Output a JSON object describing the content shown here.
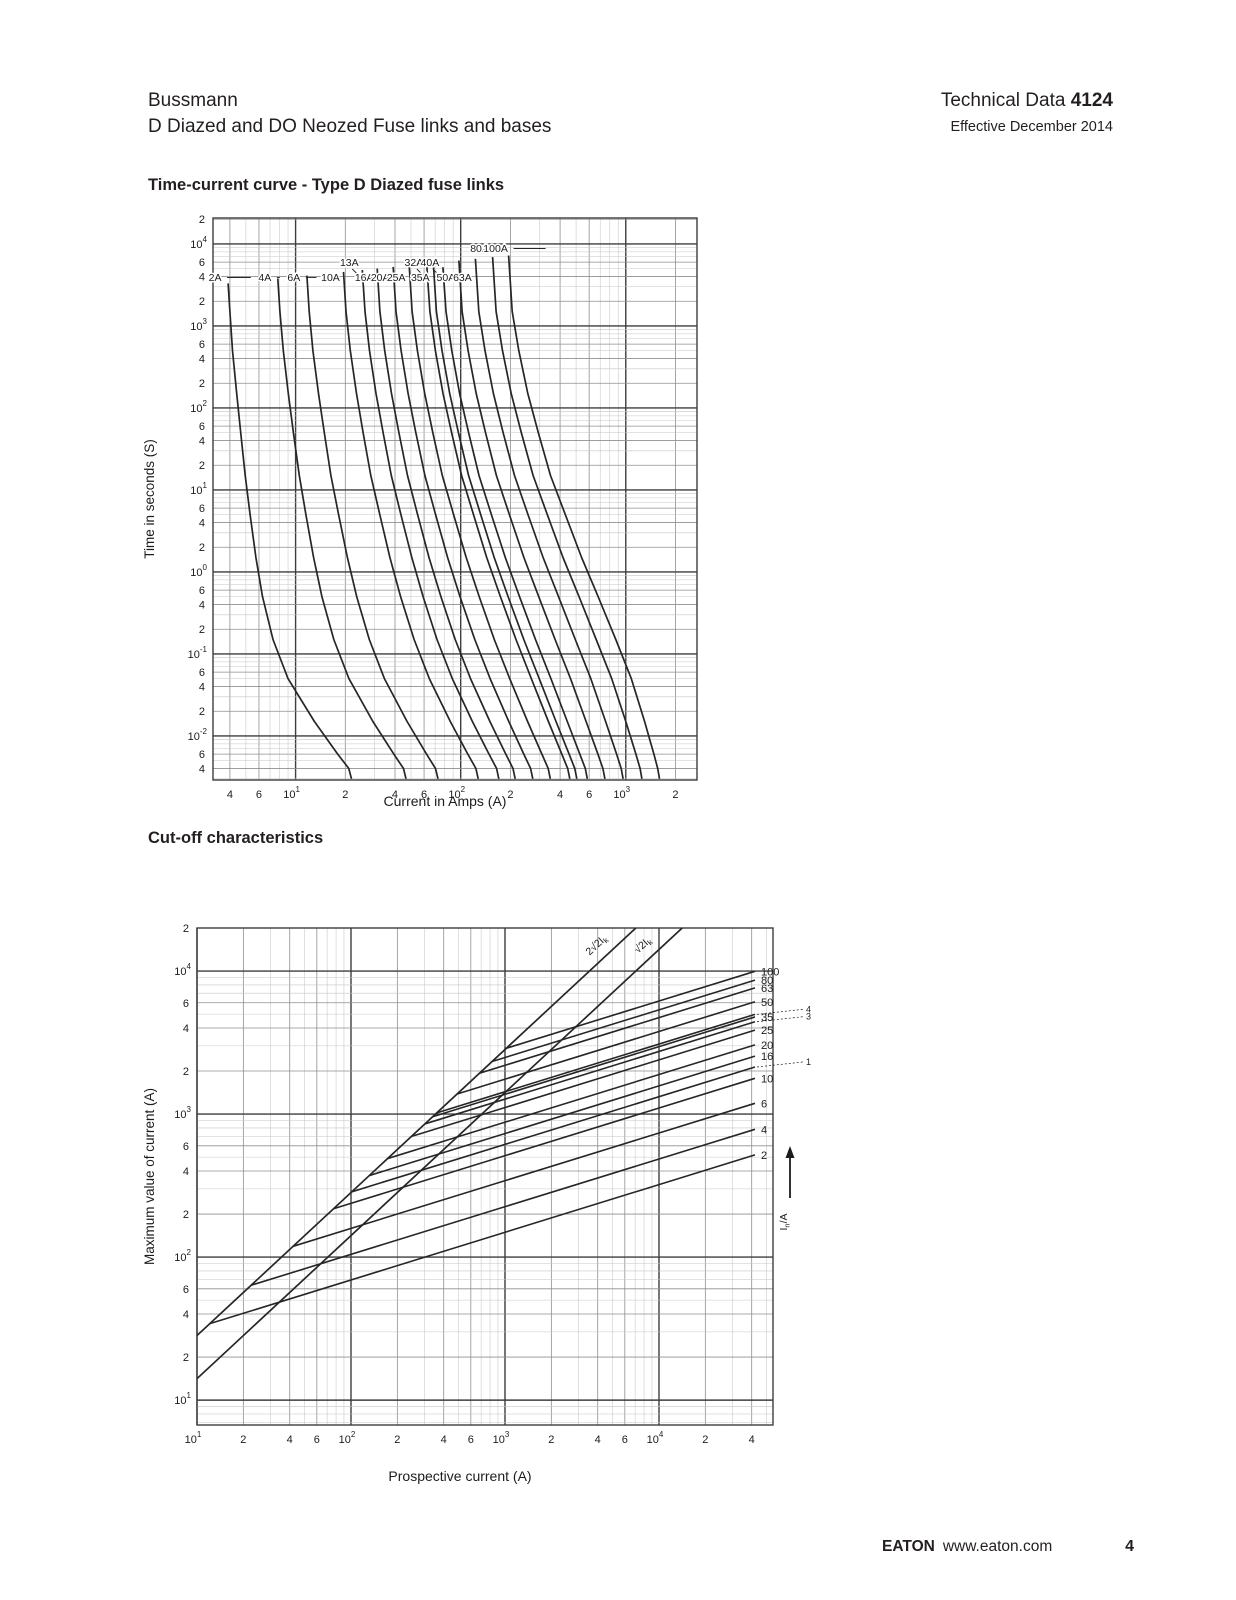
{
  "header": {
    "brand": "Bussmann",
    "subtitle": "D Diazed and DO Neozed Fuse links and bases",
    "doc_label": "Technical Data",
    "doc_number": "4124",
    "effective": "Effective December 2014"
  },
  "sections": {
    "chart1_title": "Time-current curve - Type D Diazed fuse links",
    "chart2_title": "Cut-off characteristics"
  },
  "footer": {
    "brand": "EATON",
    "url": "www.eaton.com",
    "page_number": "4"
  },
  "colors": {
    "curve": "#262626",
    "grid_decade": "#3d3d3d",
    "grid_major": "#8f8f8f",
    "grid_minor": "#c6c6c6",
    "text": "#1c1c1c"
  },
  "chart_data": [
    {
      "type": "line",
      "title": "Time-current curve - Type D Diazed fuse links",
      "xlabel": "Current in Amps (A)",
      "ylabel": "Time in seconds (S)",
      "x_scale": "log",
      "y_scale": "log",
      "xlim": [
        3.16,
        2700
      ],
      "ylim": [
        0.0029,
        20700
      ],
      "labeled_minor_ticks": [
        2,
        4,
        6
      ],
      "ratings_A": [
        2,
        4,
        6,
        10,
        13,
        16,
        20,
        25,
        32,
        35,
        40,
        50,
        63,
        80,
        100
      ],
      "curve_labels": [
        "2A",
        "4A",
        "6A",
        "10A",
        "13A",
        "16A",
        "20A",
        "25A",
        "32A",
        "35A",
        "40A",
        "50A",
        "63A",
        "80A",
        "100A"
      ],
      "label_rows": {
        "13A": "raised",
        "32A": "raised",
        "40A": "raised",
        "80A": "top",
        "100A": "top"
      },
      "time_grid_s": [
        4200,
        1500,
        500,
        150,
        50,
        15,
        5,
        1.5,
        0.5,
        0.15,
        0.05,
        0.015,
        0.006,
        0.004,
        0.003
      ],
      "current_at_times_2A": [
        3.9,
        4.0,
        4.15,
        4.4,
        4.65,
        4.95,
        5.3,
        5.75,
        6.3,
        7.3,
        9.0,
        13,
        18,
        21,
        21.8
      ],
      "current_at_times_100A": [
        195,
        205,
        225,
        255,
        295,
        350,
        430,
        540,
        680,
        870,
        1080,
        1300,
        1480,
        1560,
        1600
      ],
      "interpolation": "per-rating curves log-interpolated between 2A and 100A anchors by log(rating)"
    },
    {
      "type": "line",
      "title": "Cut-off characteristics",
      "xlabel": "Prospective current (A)",
      "ylabel": "Maximum value of current (A)",
      "x_scale": "log",
      "y_scale": "log",
      "xlim": [
        10,
        55000
      ],
      "ylim": [
        6.7,
        20000
      ],
      "labeled_minor_ticks": [
        2,
        4,
        6
      ],
      "reference_lines": [
        {
          "label": "2√2Ik",
          "factor": 2.828
        },
        {
          "label": "√2Ik",
          "factor": 1.414
        }
      ],
      "right_axis_label": "In/A",
      "fuse_line_slope_loglog": 0.3333,
      "fuse_lines": [
        {
          "rating": 100,
          "label": "100",
          "small": false,
          "cutoff_at_40kA_A": 9800
        },
        {
          "rating": 80,
          "label": "80",
          "small": false,
          "cutoff_at_40kA_A": 8500
        },
        {
          "rating": 63,
          "label": "63",
          "small": false,
          "cutoff_at_40kA_A": 7500
        },
        {
          "rating": 50,
          "label": "50",
          "small": false,
          "cutoff_at_40kA_A": 6000
        },
        {
          "rating": 40,
          "label": "4",
          "small": true,
          "cutoff_at_40kA_A": 4900
        },
        {
          "rating": 35,
          "label": "35",
          "small": false,
          "cutoff_at_40kA_A": 4700
        },
        {
          "rating": 32,
          "label": "3",
          "small": true,
          "cutoff_at_40kA_A": 4350
        },
        {
          "rating": 25,
          "label": "25",
          "small": false,
          "cutoff_at_40kA_A": 3800
        },
        {
          "rating": 20,
          "label": "20",
          "small": false,
          "cutoff_at_40kA_A": 3000
        },
        {
          "rating": 16,
          "label": "16",
          "small": false,
          "cutoff_at_40kA_A": 2500
        },
        {
          "rating": 13,
          "label": "1",
          "small": true,
          "cutoff_at_40kA_A": 2100
        },
        {
          "rating": 10,
          "label": "10",
          "small": false,
          "cutoff_at_40kA_A": 1750
        },
        {
          "rating": 6,
          "label": "6",
          "small": false,
          "cutoff_at_40kA_A": 1170
        },
        {
          "rating": 4,
          "label": "4",
          "small": false,
          "cutoff_at_40kA_A": 770
        },
        {
          "rating": 2,
          "label": "2",
          "small": false,
          "cutoff_at_40kA_A": 510
        }
      ]
    }
  ]
}
